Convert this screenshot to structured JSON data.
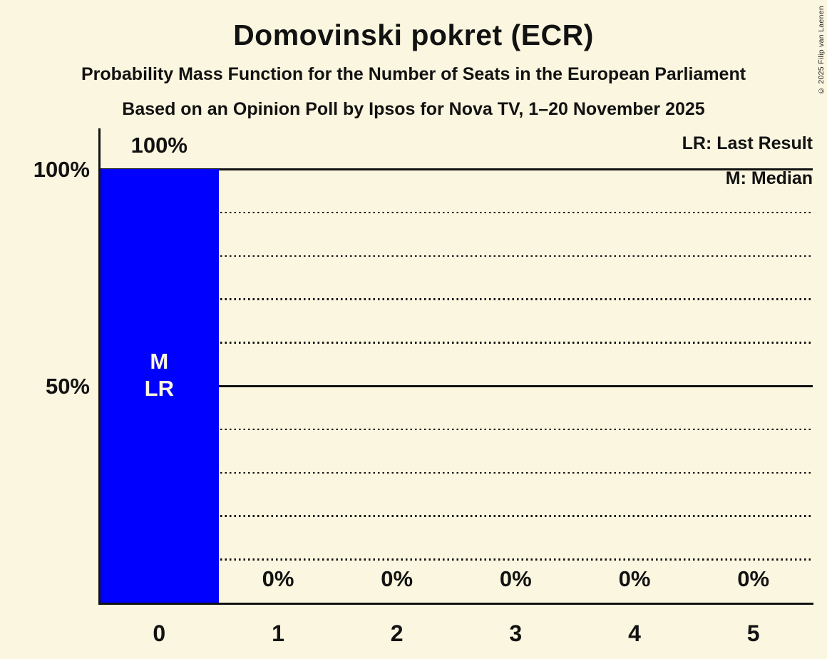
{
  "header": {
    "title": "Domovinski pokret (ECR)",
    "subtitle1": "Probability Mass Function for the Number of Seats in the European Parliament",
    "subtitle2": "Based on an Opinion Poll by Ipsos for Nova TV, 1–20 November 2025"
  },
  "copyright": "© 2025 Filip van Laenen",
  "legend": {
    "last_result": "LR: Last Result",
    "median": "M: Median"
  },
  "colors": {
    "background": "#fbf6df",
    "bar": "#0000ff",
    "text": "#121212",
    "bar_label": "#fbf6df"
  },
  "chart_data": {
    "type": "bar",
    "title": "Domovinski pokret (ECR)",
    "categories": [
      "0",
      "1",
      "2",
      "3",
      "4",
      "5"
    ],
    "values": [
      100,
      0,
      0,
      0,
      0,
      0
    ],
    "value_labels": [
      "100%",
      "0%",
      "0%",
      "0%",
      "0%",
      "0%"
    ],
    "bar_annotations": [
      [
        "M",
        "LR"
      ],
      [],
      [],
      [],
      [],
      []
    ],
    "ylim": [
      0,
      100
    ],
    "y_ticks": [
      {
        "value": 100,
        "label": "100%"
      },
      {
        "value": 50,
        "label": "50%"
      }
    ],
    "gridlines": [
      {
        "value": 100,
        "style": "solid"
      },
      {
        "value": 90,
        "style": "dotted"
      },
      {
        "value": 80,
        "style": "dotted"
      },
      {
        "value": 70,
        "style": "dotted"
      },
      {
        "value": 60,
        "style": "dotted"
      },
      {
        "value": 50,
        "style": "solid"
      },
      {
        "value": 40,
        "style": "dotted"
      },
      {
        "value": 30,
        "style": "dotted"
      },
      {
        "value": 20,
        "style": "dotted"
      },
      {
        "value": 10,
        "style": "dotted"
      }
    ],
    "grid": true,
    "legend_position": "top-right"
  }
}
